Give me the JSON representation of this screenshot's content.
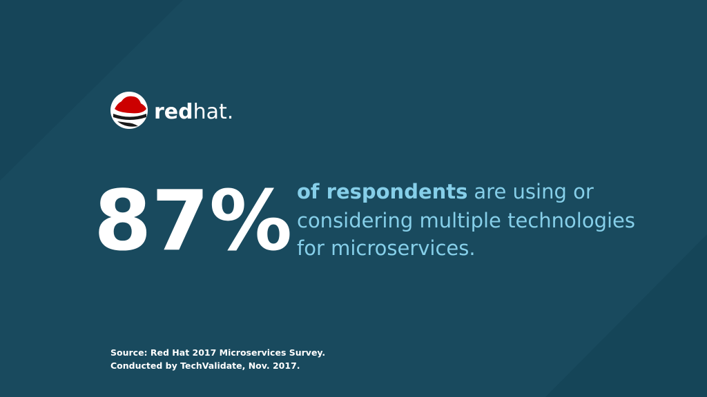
{
  "logo": {
    "text_bold": "red",
    "text_light": "hat."
  },
  "stat": {
    "value": "87%"
  },
  "statement": {
    "emphasis": "of respondents",
    "lines": [
      "are using or",
      "considering multiple technologies",
      "for microservices."
    ]
  },
  "source": {
    "lines": [
      "Source: Red Hat 2017 Microservices Survey.",
      "Conducted by TechValidate, Nov. 2017."
    ]
  }
}
